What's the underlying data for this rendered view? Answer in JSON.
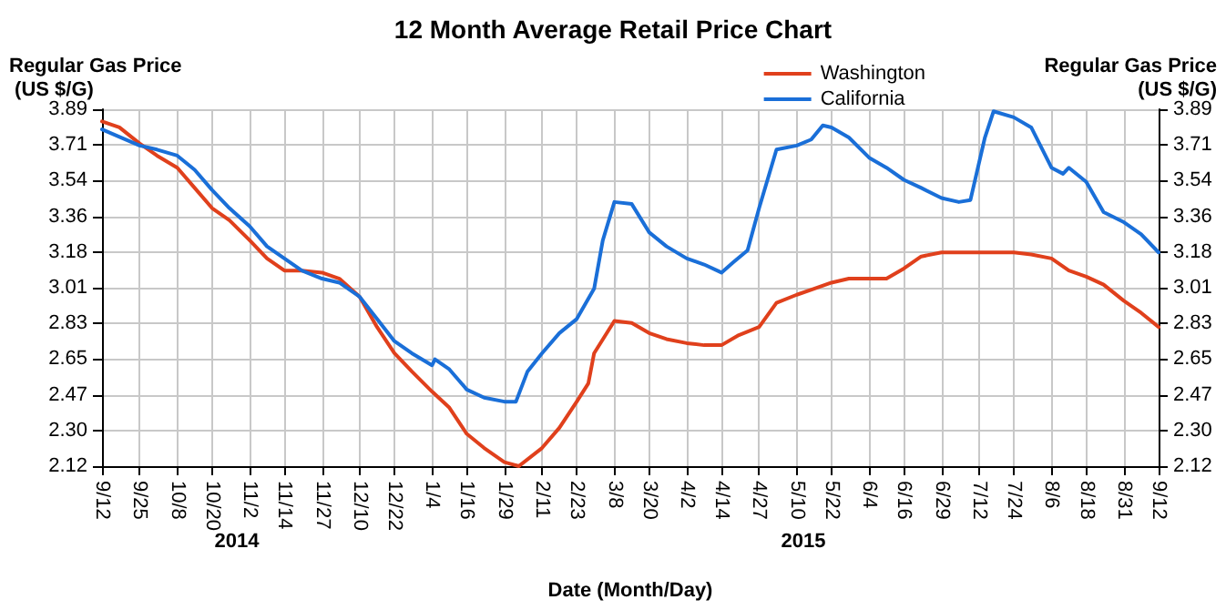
{
  "chart_data": {
    "type": "line",
    "title": "12 Month Average Retail Price Chart",
    "xlabel": "Date (Month/Day)",
    "ylabel": "Regular Gas Price (US $/G)",
    "y2label": "Regular Gas Price (US $/G)",
    "xlim": [
      "2014-09-12",
      "2015-09-12"
    ],
    "xticks": [
      {
        "value": "2014-09-12",
        "label": "9/12"
      },
      {
        "value": "2014-09-25",
        "label": "9/25"
      },
      {
        "value": "2014-10-08",
        "label": "10/8"
      },
      {
        "value": "2014-10-20",
        "label": "10/20"
      },
      {
        "value": "2014-11-02",
        "label": "11/2"
      },
      {
        "value": "2014-11-14",
        "label": "11/14"
      },
      {
        "value": "2014-11-27",
        "label": "11/27"
      },
      {
        "value": "2014-12-10",
        "label": "12/10"
      },
      {
        "value": "2014-12-22",
        "label": "12/22"
      },
      {
        "value": "2015-01-04",
        "label": "1/4"
      },
      {
        "value": "2015-01-16",
        "label": "1/16"
      },
      {
        "value": "2015-01-29",
        "label": "1/29"
      },
      {
        "value": "2015-02-11",
        "label": "2/11"
      },
      {
        "value": "2015-02-23",
        "label": "2/23"
      },
      {
        "value": "2015-03-08",
        "label": "3/8"
      },
      {
        "value": "2015-03-20",
        "label": "3/20"
      },
      {
        "value": "2015-04-02",
        "label": "4/2"
      },
      {
        "value": "2015-04-14",
        "label": "4/14"
      },
      {
        "value": "2015-04-27",
        "label": "4/27"
      },
      {
        "value": "2015-05-10",
        "label": "5/10"
      },
      {
        "value": "2015-05-22",
        "label": "5/22"
      },
      {
        "value": "2015-06-04",
        "label": "6/4"
      },
      {
        "value": "2015-06-16",
        "label": "6/16"
      },
      {
        "value": "2015-06-29",
        "label": "6/29"
      },
      {
        "value": "2015-07-12",
        "label": "7/12"
      },
      {
        "value": "2015-07-24",
        "label": "7/24"
      },
      {
        "value": "2015-08-06",
        "label": "8/6"
      },
      {
        "value": "2015-08-18",
        "label": "8/18"
      },
      {
        "value": "2015-08-31",
        "label": "8/31"
      },
      {
        "value": "2015-09-12",
        "label": "9/12"
      }
    ],
    "ylim": [
      2.12,
      3.89
    ],
    "yticks": [
      2.12,
      {
        "value": 2.297,
        "label": "2.30"
      },
      {
        "value": 2.474,
        "label": "2.47"
      },
      {
        "value": 2.651,
        "label": "2.65"
      },
      {
        "value": 2.828,
        "label": "2.83"
      },
      {
        "value": 3.005,
        "label": "3.01"
      },
      {
        "value": 3.182,
        "label": "3.18"
      },
      {
        "value": 3.359,
        "label": "3.36"
      },
      {
        "value": 3.536,
        "label": "3.54"
      },
      {
        "value": 3.713,
        "label": "3.71"
      },
      3.89
    ],
    "y2lim": [
      2.12,
      3.89
    ],
    "y2ticks": [
      2.12,
      {
        "value": 2.297,
        "label": "2.30"
      },
      {
        "value": 2.474,
        "label": "2.47"
      },
      {
        "value": 2.651,
        "label": "2.65"
      },
      {
        "value": 2.828,
        "label": "2.83"
      },
      {
        "value": 3.005,
        "label": "3.01"
      },
      {
        "value": 3.182,
        "label": "3.18"
      },
      {
        "value": 3.359,
        "label": "3.36"
      },
      {
        "value": 3.536,
        "label": "3.54"
      },
      {
        "value": 3.713,
        "label": "3.71"
      },
      3.89
    ],
    "grid": true,
    "legend": "top right",
    "marker": "none",
    "line_style": "solid",
    "annotations": [
      "2014",
      "2015"
    ],
    "series": [
      {
        "name": "Washington",
        "color": "#e0401c",
        "x": [
          "2014-09-12",
          "2014-09-18",
          "2014-09-25",
          "2014-10-01",
          "2014-10-08",
          "2014-10-14",
          "2014-10-20",
          "2014-10-26",
          "2014-11-02",
          "2014-11-08",
          "2014-11-14",
          "2014-11-20",
          "2014-11-27",
          "2014-12-03",
          "2014-12-10",
          "2014-12-16",
          "2014-12-22",
          "2014-12-28",
          "2015-01-04",
          "2015-01-10",
          "2015-01-16",
          "2015-01-22",
          "2015-01-29",
          "2015-02-03",
          "2015-02-11",
          "2015-02-17",
          "2015-02-23",
          "2015-02-27",
          "2015-03-01",
          "2015-03-08",
          "2015-03-14",
          "2015-03-20",
          "2015-03-26",
          "2015-04-02",
          "2015-04-08",
          "2015-04-14",
          "2015-04-20",
          "2015-04-27",
          "2015-05-03",
          "2015-05-10",
          "2015-05-16",
          "2015-05-22",
          "2015-05-28",
          "2015-06-04",
          "2015-06-10",
          "2015-06-16",
          "2015-06-22",
          "2015-06-29",
          "2015-07-05",
          "2015-07-12",
          "2015-07-18",
          "2015-07-24",
          "2015-07-30",
          "2015-08-06",
          "2015-08-12",
          "2015-08-18",
          "2015-08-24",
          "2015-08-31",
          "2015-09-06",
          "2015-09-12"
        ],
        "values": [
          3.83,
          3.8,
          3.72,
          3.66,
          3.6,
          3.5,
          3.4,
          3.34,
          3.24,
          3.15,
          3.09,
          3.09,
          3.08,
          3.05,
          2.96,
          2.81,
          2.68,
          2.59,
          2.49,
          2.41,
          2.28,
          2.21,
          2.14,
          2.12,
          2.21,
          2.31,
          2.44,
          2.53,
          2.68,
          2.84,
          2.83,
          2.78,
          2.75,
          2.73,
          2.72,
          2.72,
          2.77,
          2.81,
          2.93,
          2.97,
          3.0,
          3.03,
          3.05,
          3.05,
          3.05,
          3.1,
          3.16,
          3.18,
          3.18,
          3.18,
          3.18,
          3.18,
          3.17,
          3.15,
          3.09,
          3.06,
          3.02,
          2.94,
          2.88,
          2.81
        ]
      },
      {
        "name": "California",
        "color": "#1a6fd8",
        "x": [
          "2014-09-12",
          "2014-09-25",
          "2014-10-01",
          "2014-10-08",
          "2014-10-14",
          "2014-10-20",
          "2014-10-26",
          "2014-11-02",
          "2014-11-08",
          "2014-11-14",
          "2014-11-20",
          "2014-11-27",
          "2014-12-03",
          "2014-12-10",
          "2014-12-16",
          "2014-12-22",
          "2014-12-28",
          "2015-01-04",
          "2015-01-05",
          "2015-01-10",
          "2015-01-16",
          "2015-01-22",
          "2015-01-29",
          "2015-02-02",
          "2015-02-06",
          "2015-02-11",
          "2015-02-17",
          "2015-02-23",
          "2015-03-01",
          "2015-03-04",
          "2015-03-08",
          "2015-03-14",
          "2015-03-20",
          "2015-03-26",
          "2015-04-02",
          "2015-04-08",
          "2015-04-14",
          "2015-04-18",
          "2015-04-23",
          "2015-04-27",
          "2015-05-03",
          "2015-05-10",
          "2015-05-15",
          "2015-05-19",
          "2015-05-22",
          "2015-05-28",
          "2015-06-04",
          "2015-06-10",
          "2015-06-16",
          "2015-06-22",
          "2015-06-29",
          "2015-07-05",
          "2015-07-09",
          "2015-07-14",
          "2015-07-17",
          "2015-07-24",
          "2015-07-30",
          "2015-08-06",
          "2015-08-10",
          "2015-08-12",
          "2015-08-18",
          "2015-08-24",
          "2015-08-31",
          "2015-09-06",
          "2015-09-12"
        ],
        "values": [
          3.79,
          3.71,
          3.69,
          3.66,
          3.59,
          3.49,
          3.4,
          3.31,
          3.21,
          3.15,
          3.09,
          3.05,
          3.03,
          2.96,
          2.85,
          2.74,
          2.68,
          2.62,
          2.65,
          2.6,
          2.5,
          2.46,
          2.44,
          2.44,
          2.59,
          2.68,
          2.78,
          2.85,
          3.0,
          3.24,
          3.43,
          3.42,
          3.28,
          3.21,
          3.15,
          3.12,
          3.08,
          3.13,
          3.19,
          3.4,
          3.69,
          3.71,
          3.74,
          3.81,
          3.8,
          3.75,
          3.65,
          3.6,
          3.54,
          3.5,
          3.45,
          3.43,
          3.44,
          3.75,
          3.88,
          3.85,
          3.8,
          3.6,
          3.57,
          3.6,
          3.53,
          3.38,
          3.33,
          3.27,
          3.18
        ]
      }
    ]
  }
}
